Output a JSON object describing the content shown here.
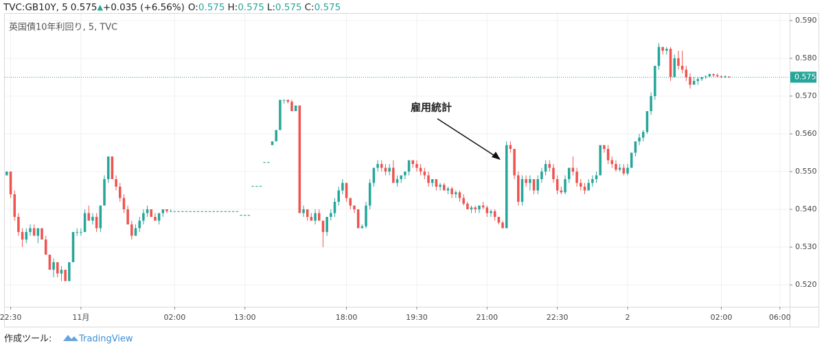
{
  "header": {
    "symbol": "TVC:GB10Y, 5",
    "price": "0.575",
    "arrow": "▲",
    "change": "+0.035 (+6.56%)",
    "fields": [
      {
        "key": "O:",
        "value": "0.575"
      },
      {
        "key": "H:",
        "value": "0.575"
      },
      {
        "key": "L:",
        "value": "0.575"
      },
      {
        "key": "C:",
        "value": "0.575"
      }
    ]
  },
  "footer": {
    "text": "作成ツール:",
    "brand": "TradingView"
  },
  "chart_data": {
    "type": "candlestick",
    "legend": "英国債10年利回り, 5, TVC",
    "annotation": "雇用統計",
    "up_color": "#26a69a",
    "down_color": "#ef5350",
    "grid": true,
    "last_price": {
      "value": 0.575,
      "label": "0.575"
    },
    "ylim": [
      0.5142,
      0.5918
    ],
    "yticks": [
      {
        "value": 0.52,
        "label": "0.520"
      },
      {
        "value": 0.53,
        "label": "0.530"
      },
      {
        "value": 0.54,
        "label": "0.540"
      },
      {
        "value": 0.55,
        "label": "0.550"
      },
      {
        "value": 0.56,
        "label": "0.560"
      },
      {
        "value": 0.57,
        "label": "0.570"
      },
      {
        "value": 0.58,
        "label": "0.580"
      },
      {
        "value": 0.59,
        "label": "0.590"
      }
    ],
    "xlim": [
      0,
      201
    ],
    "xticks": [
      {
        "value": 1,
        "label": "22:30"
      },
      {
        "value": 19,
        "label": "11月"
      },
      {
        "value": 43,
        "label": "02:00"
      },
      {
        "value": 61,
        "label": "13:00"
      },
      {
        "value": 87,
        "label": "18:00"
      },
      {
        "value": 105,
        "label": "19:30"
      },
      {
        "value": 123,
        "label": "21:00"
      },
      {
        "value": 141,
        "label": "22:30"
      },
      {
        "value": 159,
        "label": "2"
      },
      {
        "value": 183,
        "label": "02:00"
      },
      {
        "value": 198,
        "label": "06:00"
      }
    ],
    "ohlc": [
      [
        0.549,
        0.55,
        0.549,
        0.55
      ],
      [
        0.55,
        0.55,
        0.543,
        0.544
      ],
      [
        0.544,
        0.545,
        0.537,
        0.538
      ],
      [
        0.538,
        0.539,
        0.533,
        0.534
      ],
      [
        0.534,
        0.535,
        0.53,
        0.532
      ],
      [
        0.532,
        0.535,
        0.531,
        0.534
      ],
      [
        0.534,
        0.536,
        0.533,
        0.535
      ],
      [
        0.535,
        0.536,
        0.533,
        0.533
      ],
      [
        0.533,
        0.535,
        0.531,
        0.535
      ],
      [
        0.535,
        0.535,
        0.532,
        0.532
      ],
      [
        0.532,
        0.533,
        0.528,
        0.528
      ],
      [
        0.528,
        0.528,
        0.524,
        0.524
      ],
      [
        0.524,
        0.527,
        0.522,
        0.526
      ],
      [
        0.526,
        0.526,
        0.522,
        0.523
      ],
      [
        0.523,
        0.525,
        0.521,
        0.524
      ],
      [
        0.524,
        0.524,
        0.521,
        0.521
      ],
      [
        0.521,
        0.526,
        0.521,
        0.526
      ],
      [
        0.526,
        0.534,
        0.526,
        0.534
      ],
      [
        0.534,
        0.535,
        0.533,
        0.534
      ],
      [
        0.534,
        0.535,
        0.533,
        0.534
      ],
      [
        0.534,
        0.54,
        0.534,
        0.539
      ],
      [
        0.539,
        0.541,
        0.537,
        0.537
      ],
      [
        0.537,
        0.539,
        0.536,
        0.538
      ],
      [
        0.538,
        0.539,
        0.534,
        0.535
      ],
      [
        0.535,
        0.541,
        0.534,
        0.541
      ],
      [
        0.541,
        0.549,
        0.541,
        0.548
      ],
      [
        0.548,
        0.554,
        0.547,
        0.554
      ],
      [
        0.554,
        0.554,
        0.548,
        0.548
      ],
      [
        0.548,
        0.549,
        0.545,
        0.546
      ],
      [
        0.546,
        0.547,
        0.542,
        0.543
      ],
      [
        0.543,
        0.544,
        0.539,
        0.54
      ],
      [
        0.54,
        0.541,
        0.536,
        0.536
      ],
      [
        0.536,
        0.537,
        0.532,
        0.533
      ],
      [
        0.533,
        0.536,
        0.533,
        0.535
      ],
      [
        0.535,
        0.538,
        0.534,
        0.537
      ],
      [
        0.537,
        0.54,
        0.536,
        0.539
      ],
      [
        0.539,
        0.541,
        0.538,
        0.54
      ],
      [
        0.54,
        0.54,
        0.538,
        0.538
      ],
      [
        0.538,
        0.539,
        0.537,
        0.537
      ],
      [
        0.537,
        0.539,
        0.536,
        0.539
      ],
      [
        0.539,
        0.54,
        0.538,
        0.54
      ],
      [
        0.54,
        0.54,
        0.539,
        0.5395
      ],
      [
        0.5395,
        0.54,
        0.5395,
        0.5395
      ],
      [
        0.5395,
        0.5395,
        0.5395,
        0.5395
      ],
      [
        0.5395,
        0.5395,
        0.5395,
        0.5395
      ],
      [
        0.5395,
        0.5395,
        0.5395,
        0.5395
      ],
      [
        0.5395,
        0.5395,
        0.5395,
        0.5395
      ],
      [
        0.5395,
        0.5395,
        0.5395,
        0.5395
      ],
      [
        0.5395,
        0.5395,
        0.5395,
        0.5395
      ],
      [
        0.5395,
        0.5395,
        0.5395,
        0.5395
      ],
      [
        0.5395,
        0.5395,
        0.5395,
        0.5395
      ],
      [
        0.5395,
        0.5395,
        0.5395,
        0.5395
      ],
      [
        0.5395,
        0.5395,
        0.5395,
        0.5395
      ],
      [
        0.5395,
        0.5395,
        0.5395,
        0.5395
      ],
      [
        0.5395,
        0.5395,
        0.5395,
        0.5395
      ],
      [
        0.5395,
        0.5395,
        0.5395,
        0.5395
      ],
      [
        0.5395,
        0.5395,
        0.5395,
        0.5395
      ],
      [
        0.5395,
        0.5395,
        0.5395,
        0.5395
      ],
      [
        0.5395,
        0.5395,
        0.5395,
        0.5395
      ],
      [
        0.5395,
        0.5395,
        0.5395,
        0.5395
      ],
      [
        0.5385,
        0.5385,
        0.5385,
        0.5385
      ],
      [
        0.5385,
        0.5385,
        0.5385,
        0.5385
      ],
      [
        0.5385,
        0.5385,
        0.5385,
        0.5385
      ],
      [
        0.5462,
        0.5462,
        0.5462,
        0.5462
      ],
      [
        0.5462,
        0.5462,
        0.5462,
        0.5462
      ],
      [
        0.5462,
        0.5462,
        0.5462,
        0.5462
      ],
      [
        0.5525,
        0.5525,
        0.5525,
        0.5525
      ],
      [
        0.5525,
        0.5525,
        0.5525,
        0.5525
      ],
      [
        0.557,
        0.558,
        0.557,
        0.558
      ],
      [
        0.558,
        0.561,
        0.558,
        0.561
      ],
      [
        0.561,
        0.569,
        0.561,
        0.569
      ],
      [
        0.569,
        0.569,
        0.568,
        0.569
      ],
      [
        0.569,
        0.569,
        0.568,
        0.5685
      ],
      [
        0.5685,
        0.569,
        0.566,
        0.566
      ],
      [
        0.566,
        0.5675,
        0.566,
        0.5675
      ],
      [
        0.5675,
        0.5675,
        0.539,
        0.539
      ],
      [
        0.539,
        0.541,
        0.538,
        0.54
      ],
      [
        0.54,
        0.54,
        0.537,
        0.538
      ],
      [
        0.538,
        0.539,
        0.537,
        0.537
      ],
      [
        0.537,
        0.54,
        0.536,
        0.539
      ],
      [
        0.539,
        0.54,
        0.537,
        0.537
      ],
      [
        0.537,
        0.537,
        0.53,
        0.534
      ],
      [
        0.534,
        0.538,
        0.533,
        0.538
      ],
      [
        0.538,
        0.54,
        0.537,
        0.539
      ],
      [
        0.539,
        0.543,
        0.538,
        0.542
      ],
      [
        0.542,
        0.546,
        0.541,
        0.545
      ],
      [
        0.545,
        0.548,
        0.544,
        0.547
      ],
      [
        0.547,
        0.547,
        0.542,
        0.543
      ],
      [
        0.543,
        0.543,
        0.54,
        0.541
      ],
      [
        0.541,
        0.541,
        0.539,
        0.54
      ],
      [
        0.54,
        0.54,
        0.535,
        0.535
      ],
      [
        0.535,
        0.536,
        0.535,
        0.5355
      ],
      [
        0.5355,
        0.542,
        0.535,
        0.541
      ],
      [
        0.541,
        0.548,
        0.54,
        0.547
      ],
      [
        0.547,
        0.551,
        0.546,
        0.551
      ],
      [
        0.551,
        0.553,
        0.55,
        0.552
      ],
      [
        0.552,
        0.553,
        0.55,
        0.551
      ],
      [
        0.551,
        0.552,
        0.549,
        0.55
      ],
      [
        0.55,
        0.552,
        0.549,
        0.551
      ],
      [
        0.551,
        0.553,
        0.547,
        0.547
      ],
      [
        0.547,
        0.549,
        0.546,
        0.548
      ],
      [
        0.548,
        0.549,
        0.547,
        0.549
      ],
      [
        0.549,
        0.55,
        0.548,
        0.55
      ],
      [
        0.55,
        0.553,
        0.549,
        0.553
      ],
      [
        0.553,
        0.553,
        0.551,
        0.552
      ],
      [
        0.552,
        0.553,
        0.55,
        0.551
      ],
      [
        0.551,
        0.552,
        0.549,
        0.55
      ],
      [
        0.55,
        0.551,
        0.548,
        0.549
      ],
      [
        0.549,
        0.55,
        0.546,
        0.547
      ],
      [
        0.547,
        0.548,
        0.546,
        0.548
      ],
      [
        0.548,
        0.548,
        0.545,
        0.546
      ],
      [
        0.546,
        0.547,
        0.545,
        0.5465
      ],
      [
        0.5465,
        0.547,
        0.545,
        0.545
      ],
      [
        0.545,
        0.546,
        0.544,
        0.5455
      ],
      [
        0.5455,
        0.546,
        0.543,
        0.544
      ],
      [
        0.544,
        0.545,
        0.543,
        0.5445
      ],
      [
        0.5445,
        0.545,
        0.542,
        0.543
      ],
      [
        0.543,
        0.544,
        0.541,
        0.5415
      ],
      [
        0.5415,
        0.542,
        0.54,
        0.54
      ],
      [
        0.54,
        0.541,
        0.539,
        0.5405
      ],
      [
        0.5405,
        0.541,
        0.539,
        0.54
      ],
      [
        0.54,
        0.541,
        0.539,
        0.541
      ],
      [
        0.541,
        0.542,
        0.54,
        0.5405
      ],
      [
        0.5405,
        0.541,
        0.538,
        0.539
      ],
      [
        0.539,
        0.54,
        0.538,
        0.5395
      ],
      [
        0.5395,
        0.54,
        0.537,
        0.538
      ],
      [
        0.538,
        0.538,
        0.536,
        0.5365
      ],
      [
        0.5365,
        0.537,
        0.535,
        0.535
      ],
      [
        0.535,
        0.558,
        0.535,
        0.557
      ],
      [
        0.557,
        0.558,
        0.555,
        0.556
      ],
      [
        0.556,
        0.556,
        0.548,
        0.549
      ],
      [
        0.549,
        0.55,
        0.541,
        0.542
      ],
      [
        0.542,
        0.549,
        0.541,
        0.548
      ],
      [
        0.548,
        0.549,
        0.546,
        0.547
      ],
      [
        0.547,
        0.549,
        0.545,
        0.548
      ],
      [
        0.548,
        0.548,
        0.544,
        0.545
      ],
      [
        0.545,
        0.549,
        0.544,
        0.548
      ],
      [
        0.548,
        0.551,
        0.547,
        0.55
      ],
      [
        0.55,
        0.553,
        0.549,
        0.552
      ],
      [
        0.552,
        0.553,
        0.55,
        0.551
      ],
      [
        0.551,
        0.552,
        0.547,
        0.548
      ],
      [
        0.548,
        0.549,
        0.544,
        0.545
      ],
      [
        0.545,
        0.546,
        0.544,
        0.5445
      ],
      [
        0.5445,
        0.549,
        0.544,
        0.548
      ],
      [
        0.548,
        0.551,
        0.547,
        0.551
      ],
      [
        0.551,
        0.554,
        0.549,
        0.55
      ],
      [
        0.55,
        0.551,
        0.546,
        0.547
      ],
      [
        0.547,
        0.548,
        0.545,
        0.546
      ],
      [
        0.546,
        0.547,
        0.544,
        0.545
      ],
      [
        0.545,
        0.548,
        0.545,
        0.547
      ],
      [
        0.547,
        0.549,
        0.546,
        0.548
      ],
      [
        0.548,
        0.55,
        0.547,
        0.549
      ],
      [
        0.549,
        0.557,
        0.549,
        0.557
      ],
      [
        0.557,
        0.557,
        0.555,
        0.556
      ],
      [
        0.556,
        0.557,
        0.552,
        0.553
      ],
      [
        0.553,
        0.554,
        0.551,
        0.552
      ],
      [
        0.552,
        0.553,
        0.55,
        0.5505
      ],
      [
        0.5505,
        0.552,
        0.55,
        0.551
      ],
      [
        0.551,
        0.552,
        0.549,
        0.5495
      ],
      [
        0.5495,
        0.552,
        0.549,
        0.551
      ],
      [
        0.551,
        0.555,
        0.551,
        0.555
      ],
      [
        0.555,
        0.558,
        0.554,
        0.558
      ],
      [
        0.558,
        0.56,
        0.557,
        0.559
      ],
      [
        0.559,
        0.561,
        0.558,
        0.5605
      ],
      [
        0.5605,
        0.566,
        0.56,
        0.566
      ],
      [
        0.566,
        0.571,
        0.565,
        0.57
      ],
      [
        0.57,
        0.578,
        0.569,
        0.578
      ],
      [
        0.578,
        0.584,
        0.577,
        0.583
      ],
      [
        0.583,
        0.583,
        0.581,
        0.582
      ],
      [
        0.582,
        0.583,
        0.581,
        0.5825
      ],
      [
        0.5825,
        0.583,
        0.574,
        0.575
      ],
      [
        0.575,
        0.581,
        0.575,
        0.58
      ],
      [
        0.58,
        0.582,
        0.577,
        0.578
      ],
      [
        0.578,
        0.582,
        0.576,
        0.577
      ],
      [
        0.577,
        0.578,
        0.574,
        0.575
      ],
      [
        0.575,
        0.576,
        0.572,
        0.573
      ],
      [
        0.573,
        0.575,
        0.573,
        0.574
      ],
      [
        0.574,
        0.575,
        0.573,
        0.5745
      ],
      [
        0.5745,
        0.575,
        0.574,
        0.575
      ],
      [
        0.575,
        0.5755,
        0.5745,
        0.5752
      ],
      [
        0.5752,
        0.576,
        0.575,
        0.5758
      ],
      [
        0.5758,
        0.576,
        0.575,
        0.5755
      ],
      [
        0.5755,
        0.576,
        0.575,
        0.5752
      ],
      [
        0.5752,
        0.5755,
        0.5748,
        0.575
      ],
      [
        0.575,
        0.5755,
        0.5748,
        0.5752
      ],
      [
        0.5752,
        0.5752,
        0.5748,
        0.575
      ]
    ]
  }
}
